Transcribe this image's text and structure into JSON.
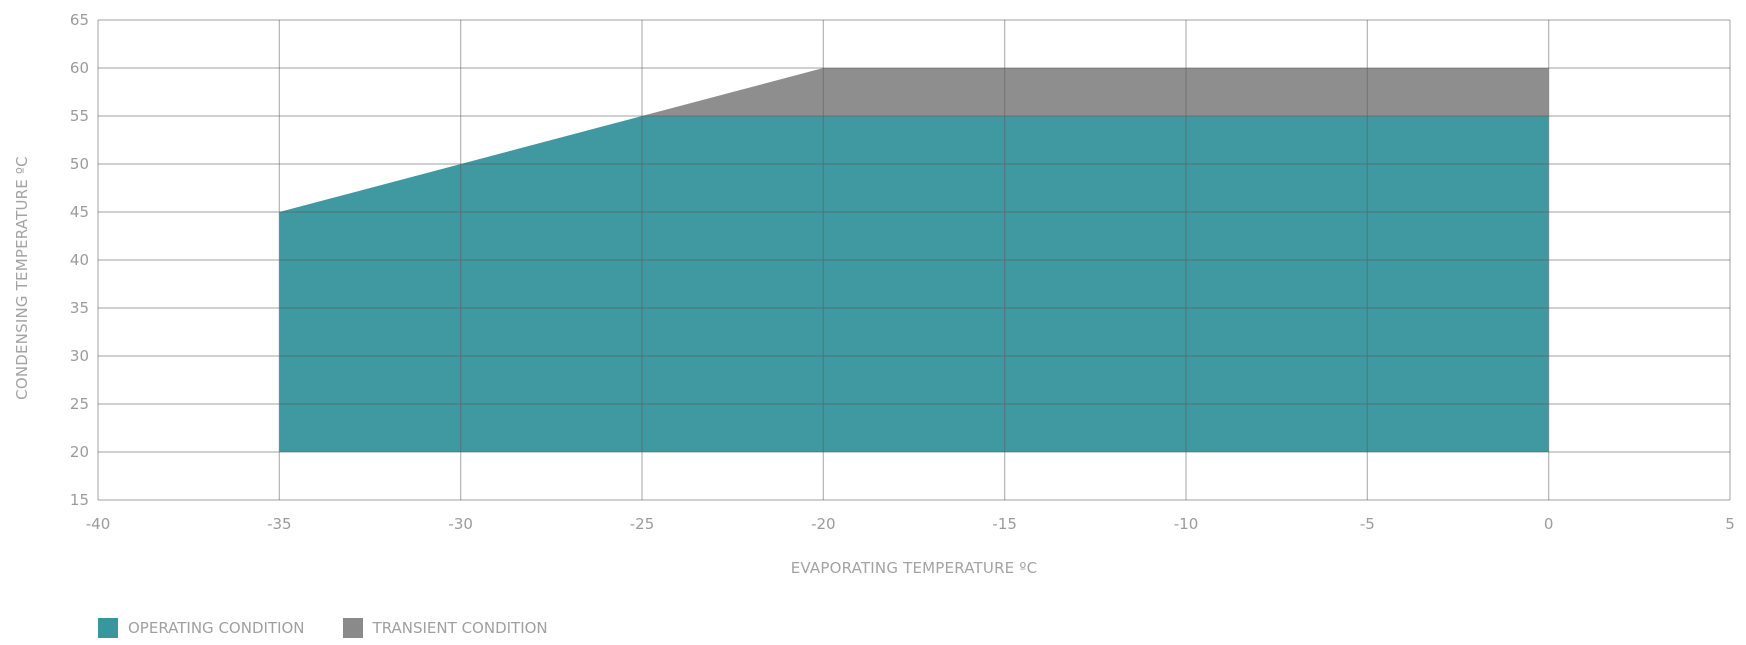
{
  "chart_data": {
    "type": "area",
    "xlabel": "EVAPORATING TEMPERATURE ºC",
    "ylabel": "CONDENSING TEMPERATURE ºC",
    "xlim": [
      -40,
      5
    ],
    "ylim": [
      15,
      65
    ],
    "x_ticks": [
      -40,
      -35,
      -30,
      -25,
      -20,
      -15,
      -10,
      -5,
      0,
      5
    ],
    "y_ticks": [
      15,
      20,
      25,
      30,
      35,
      40,
      45,
      50,
      55,
      60,
      65
    ],
    "grid": true,
    "legend_position": "bottom-left",
    "series": [
      {
        "name": "TRANSIENT CONDITION",
        "color": "#8a8a8a",
        "polygon": [
          [
            -25,
            55
          ],
          [
            -20,
            60
          ],
          [
            0,
            60
          ],
          [
            0,
            55
          ]
        ]
      },
      {
        "name": "OPERATING CONDITION",
        "color": "#3a969e",
        "polygon": [
          [
            -35,
            20
          ],
          [
            -35,
            45
          ],
          [
            -25,
            55
          ],
          [
            0,
            55
          ],
          [
            0,
            20
          ]
        ]
      }
    ]
  }
}
